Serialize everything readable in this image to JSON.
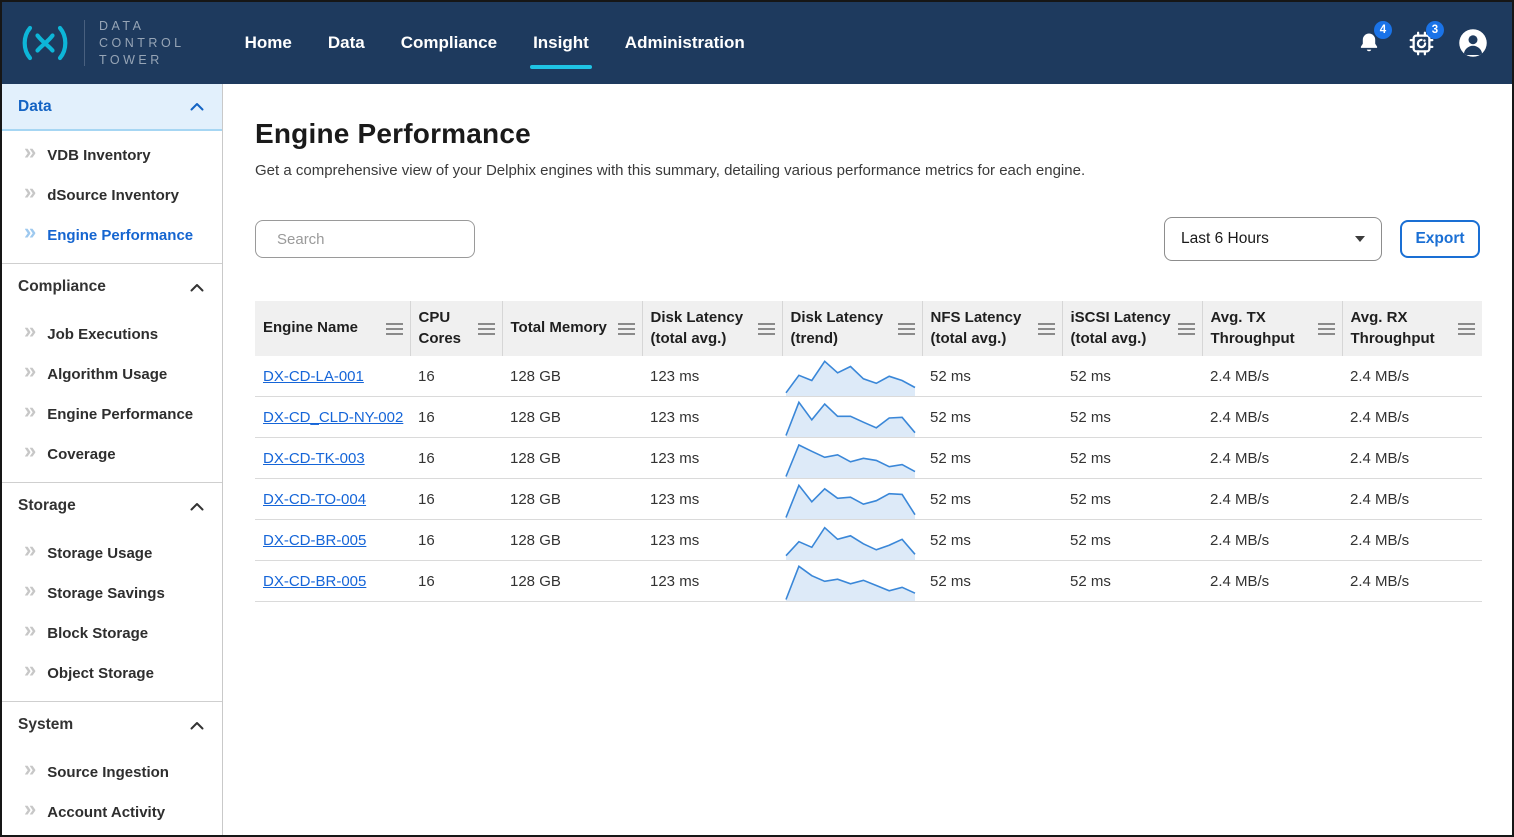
{
  "navbar": {
    "logo_lines": [
      "DATA",
      "CONTROL",
      "TOWER"
    ],
    "items": [
      {
        "label": "Home",
        "active": false
      },
      {
        "label": "Data",
        "active": false
      },
      {
        "label": "Compliance",
        "active": false
      },
      {
        "label": "Insight",
        "active": true
      },
      {
        "label": "Administration",
        "active": false
      }
    ],
    "bell_badge": "4",
    "jobs_badge": "3"
  },
  "sidebar": {
    "sections": [
      {
        "label": "Data",
        "active": true,
        "items": [
          {
            "label": "VDB Inventory",
            "active": false
          },
          {
            "label": "dSource Inventory",
            "active": false
          },
          {
            "label": "Engine Performance",
            "active": true
          }
        ]
      },
      {
        "label": "Compliance",
        "active": false,
        "items": [
          {
            "label": "Job Executions",
            "active": false
          },
          {
            "label": "Algorithm Usage",
            "active": false
          },
          {
            "label": "Engine Performance",
            "active": false
          },
          {
            "label": "Coverage",
            "active": false
          }
        ]
      },
      {
        "label": "Storage",
        "active": false,
        "items": [
          {
            "label": "Storage Usage",
            "active": false
          },
          {
            "label": "Storage Savings",
            "active": false
          },
          {
            "label": "Block Storage",
            "active": false
          },
          {
            "label": "Object Storage",
            "active": false
          }
        ]
      },
      {
        "label": "System",
        "active": false,
        "items": [
          {
            "label": "Source Ingestion",
            "active": false
          },
          {
            "label": "Account Activity",
            "active": false
          }
        ]
      }
    ]
  },
  "main": {
    "title": "Engine Performance",
    "subtitle": "Get a comprehensive view of your Delphix engines with this summary, detailing various performance metrics for each engine.",
    "search_placeholder": "Search",
    "time_range_selected": "Last 6 Hours",
    "export_label": "Export"
  },
  "table": {
    "columns": [
      "Engine Name",
      "CPU Cores",
      "Total Memory",
      "Disk Latency (total avg.)",
      "Disk Latency (trend)",
      "NFS Latency (total avg.)",
      "iSCSI Latency (total avg.)",
      "Avg. TX Throughput",
      "Avg. RX Throughput"
    ],
    "rows": [
      {
        "engine_name": "DX-CD-LA-001",
        "cpu_cores": "16",
        "total_memory": "128 GB",
        "disk_latency_avg": "123 ms",
        "disk_latency_trend": [
          5,
          55,
          40,
          95,
          62,
          80,
          45,
          32,
          52,
          40,
          20
        ],
        "nfs_latency_avg": "52 ms",
        "iscsi_latency_avg": "52 ms",
        "avg_tx_throughput": "2.4 MB/s",
        "avg_rx_throughput": "2.4 MB/s"
      },
      {
        "engine_name": "DX-CD_CLD-NY-002",
        "cpu_cores": "16",
        "total_memory": "128 GB",
        "disk_latency_avg": "123 ms",
        "disk_latency_trend": [
          0,
          95,
          45,
          90,
          55,
          55,
          38,
          22,
          50,
          52,
          8
        ],
        "nfs_latency_avg": "52 ms",
        "iscsi_latency_avg": "52 ms",
        "avg_tx_throughput": "2.4 MB/s",
        "avg_rx_throughput": "2.4 MB/s"
      },
      {
        "engine_name": "DX-CD-TK-003",
        "cpu_cores": "16",
        "total_memory": "128 GB",
        "disk_latency_avg": "123 ms",
        "disk_latency_trend": [
          0,
          90,
          72,
          55,
          62,
          42,
          52,
          46,
          28,
          34,
          14
        ],
        "nfs_latency_avg": "52 ms",
        "iscsi_latency_avg": "52 ms",
        "avg_tx_throughput": "2.4 MB/s",
        "avg_rx_throughput": "2.4 MB/s"
      },
      {
        "engine_name": "DX-CD-TO-004",
        "cpu_cores": "16",
        "total_memory": "128 GB",
        "disk_latency_avg": "123 ms",
        "disk_latency_trend": [
          0,
          92,
          45,
          82,
          55,
          58,
          38,
          48,
          68,
          66,
          8
        ],
        "nfs_latency_avg": "52 ms",
        "iscsi_latency_avg": "52 ms",
        "avg_tx_throughput": "2.4 MB/s",
        "avg_rx_throughput": "2.4 MB/s"
      },
      {
        "engine_name": "DX-CD-BR-005",
        "cpu_cores": "16",
        "total_memory": "128 GB",
        "disk_latency_avg": "123 ms",
        "disk_latency_trend": [
          8,
          48,
          32,
          88,
          55,
          65,
          42,
          25,
          38,
          55,
          12
        ],
        "nfs_latency_avg": "52 ms",
        "iscsi_latency_avg": "52 ms",
        "avg_tx_throughput": "2.4 MB/s",
        "avg_rx_throughput": "2.4 MB/s"
      },
      {
        "engine_name": "DX-CD-BR-005",
        "cpu_cores": "16",
        "total_memory": "128 GB",
        "disk_latency_avg": "123 ms",
        "disk_latency_trend": [
          0,
          95,
          68,
          52,
          58,
          45,
          55,
          40,
          25,
          35,
          18
        ],
        "nfs_latency_avg": "52 ms",
        "iscsi_latency_avg": "52 ms",
        "avg_tx_throughput": "2.4 MB/s",
        "avg_rx_throughput": "2.4 MB/s"
      }
    ]
  },
  "colors": {
    "navbar_bg": "#1e3a5e",
    "accent_cyan": "#1fc3e4",
    "badge_blue": "#1a73e8",
    "link_blue": "#1565d8",
    "sidebar_active_bg": "#e2f0fc",
    "spark_line": "#3a87d8",
    "spark_fill": "#ddeaf8"
  }
}
